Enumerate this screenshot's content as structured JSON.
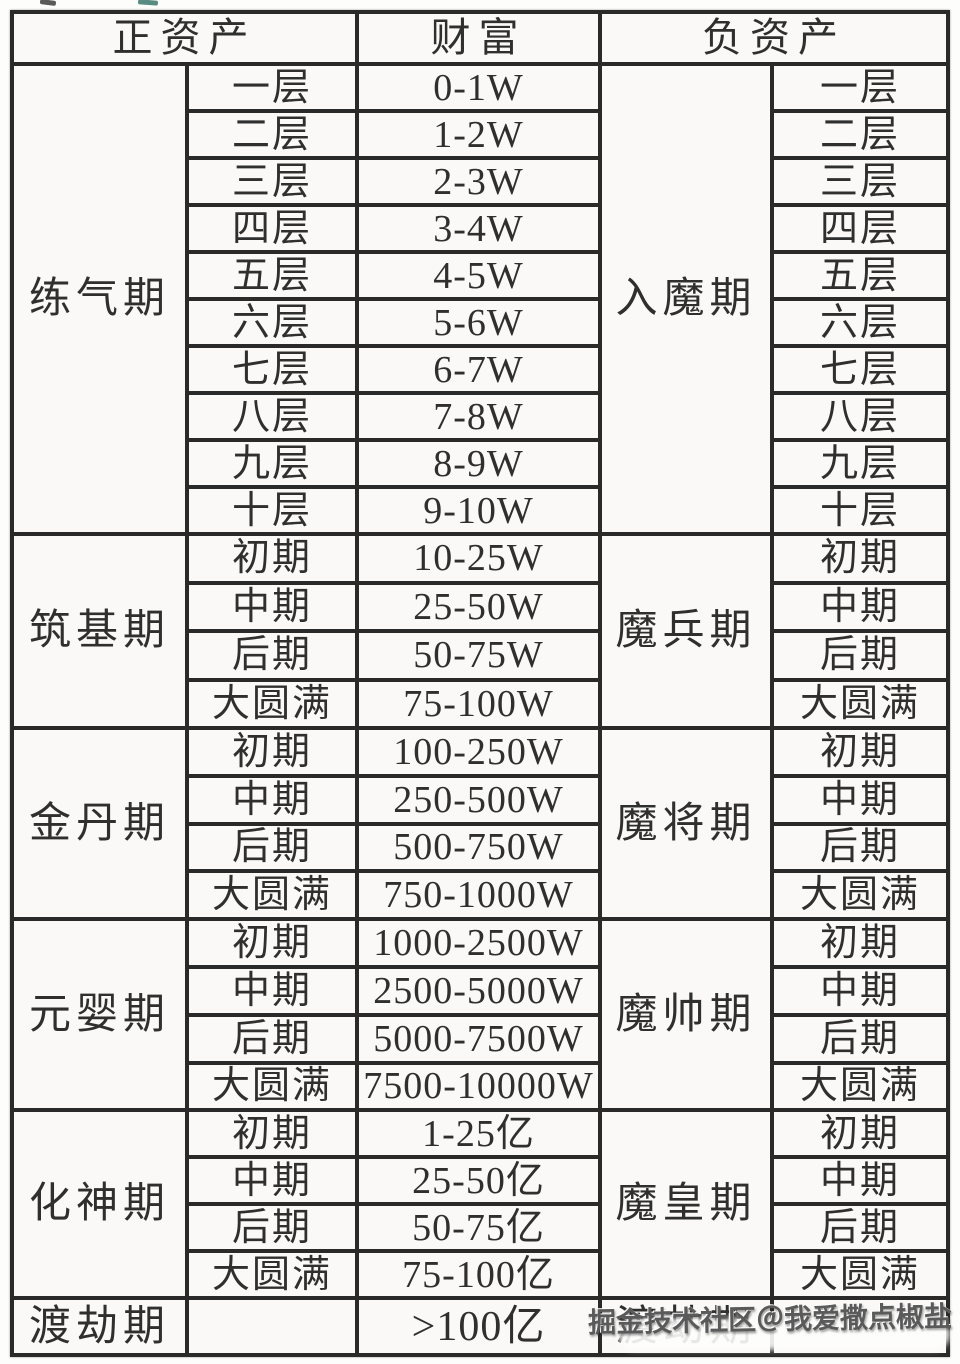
{
  "colors": {
    "page_bg": "#fdfdfb",
    "cell_bg": "#faf9f7",
    "line": "#2a2a2a",
    "text": "#2f2f2f",
    "watermark_text": "#5a5a5a"
  },
  "header": {
    "positive": "正资产",
    "wealth": "财富",
    "negative": "负资产"
  },
  "sections": [
    {
      "stage": "练气期",
      "demon_stage": "入魔期",
      "rows": [
        {
          "level": "一层",
          "wealth": "0-1W",
          "demon_level": "一层"
        },
        {
          "level": "二层",
          "wealth": "1-2W",
          "demon_level": "二层"
        },
        {
          "level": "三层",
          "wealth": "2-3W",
          "demon_level": "三层"
        },
        {
          "level": "四层",
          "wealth": "3-4W",
          "demon_level": "四层"
        },
        {
          "level": "五层",
          "wealth": "4-5W",
          "demon_level": "五层"
        },
        {
          "level": "六层",
          "wealth": "5-6W",
          "demon_level": "六层"
        },
        {
          "level": "七层",
          "wealth": "6-7W",
          "demon_level": "七层"
        },
        {
          "level": "八层",
          "wealth": "7-8W",
          "demon_level": "八层"
        },
        {
          "level": "九层",
          "wealth": "8-9W",
          "demon_level": "九层"
        },
        {
          "level": "十层",
          "wealth": "9-10W",
          "demon_level": "十层"
        }
      ]
    },
    {
      "stage": "筑基期",
      "demon_stage": "魔兵期",
      "rows": [
        {
          "level": "初期",
          "wealth": "10-25W",
          "demon_level": "初期"
        },
        {
          "level": "中期",
          "wealth": "25-50W",
          "demon_level": "中期"
        },
        {
          "level": "后期",
          "wealth": "50-75W",
          "demon_level": "后期"
        },
        {
          "level": "大圆满",
          "wealth": "75-100W",
          "demon_level": "大圆满"
        }
      ]
    },
    {
      "stage": "金丹期",
      "demon_stage": "魔将期",
      "rows": [
        {
          "level": "初期",
          "wealth": "100-250W",
          "demon_level": "初期"
        },
        {
          "level": "中期",
          "wealth": "250-500W",
          "demon_level": "中期"
        },
        {
          "level": "后期",
          "wealth": "500-750W",
          "demon_level": "后期"
        },
        {
          "level": "大圆满",
          "wealth": "750-1000W",
          "demon_level": "大圆满"
        }
      ]
    },
    {
      "stage": "元婴期",
      "demon_stage": "魔帅期",
      "rows": [
        {
          "level": "初期",
          "wealth": "1000-2500W",
          "demon_level": "初期"
        },
        {
          "level": "中期",
          "wealth": "2500-5000W",
          "demon_level": "中期"
        },
        {
          "level": "后期",
          "wealth": "5000-7500W",
          "demon_level": "后期"
        },
        {
          "level": "大圆满",
          "wealth": "7500-10000W",
          "demon_level": "大圆满"
        }
      ]
    },
    {
      "stage": "化神期",
      "demon_stage": "魔皇期",
      "rows": [
        {
          "level": "初期",
          "wealth": "1-25亿",
          "demon_level": "初期"
        },
        {
          "level": "中期",
          "wealth": "25-50亿",
          "demon_level": "中期"
        },
        {
          "level": "后期",
          "wealth": "50-75亿",
          "demon_level": "后期"
        },
        {
          "level": "大圆满",
          "wealth": "75-100亿",
          "demon_level": "大圆满"
        }
      ]
    }
  ],
  "final_row": {
    "stage": "渡劫期",
    "wealth": ">100亿",
    "demon_stage": "渡劫期"
  },
  "watermark": {
    "text": "掘金技术社区＠我爱撒点椒盐"
  }
}
